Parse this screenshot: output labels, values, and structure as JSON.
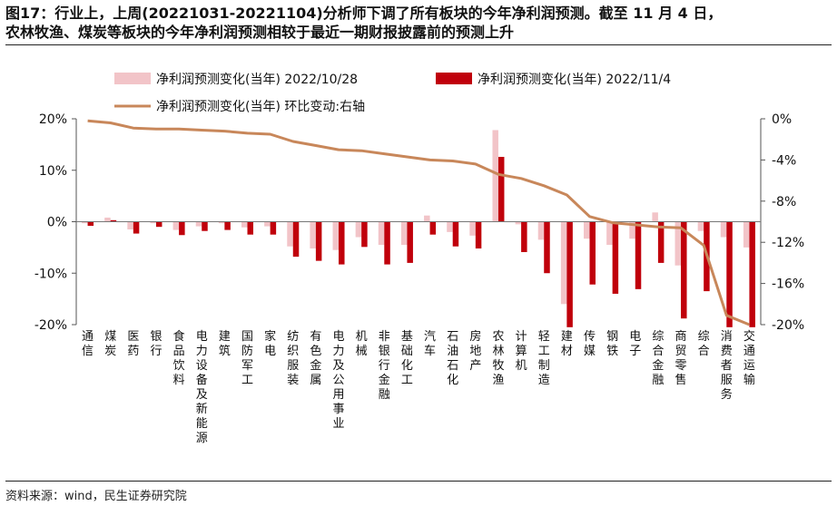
{
  "title_line1": "图17：行业上，上周(20221031-20221104)分析师下调了所有板块的今年净利润预测。截至 11 月 4 日，",
  "title_line2": "农林牧渔、煤炭等板块的今年净利润预测相较于最近一期财报披露前的预测上升",
  "source": "资料来源：wind，民生证券研究院",
  "colors": {
    "series_light": "#f2c4c8",
    "series_dark": "#c0000b",
    "series_line": "#c8875a"
  },
  "chart_data": {
    "type": "bar",
    "categories": [
      "通信",
      "煤炭",
      "医药",
      "银行",
      "食品饮料",
      "电力设备及新能源",
      "建筑",
      "国防军工",
      "家电",
      "纺织服装",
      "有色金属",
      "电力及公用事业",
      "机械",
      "非银行金融",
      "基础化工",
      "汽车",
      "石油石化",
      "房地产",
      "农林牧渔",
      "计算机",
      "轻工制造",
      "建材",
      "传媒",
      "钢铁",
      "电子",
      "综合金融",
      "商贸零售",
      "综合",
      "消费者服务",
      "交通运输"
    ],
    "series": [
      {
        "name": "净利润预测变化(当年) 2022/10/28",
        "kind": "bar",
        "axis": "left",
        "values": [
          -0.3,
          0.8,
          -1.5,
          -0.3,
          -1.6,
          -0.9,
          -0.3,
          -1.1,
          -0.9,
          -4.8,
          -5.2,
          -5.5,
          -3.0,
          -4.5,
          -4.5,
          1.2,
          -2.0,
          -2.7,
          17.8,
          -0.5,
          -3.5,
          -16.0,
          -3.3,
          -4.5,
          -3.3,
          1.8,
          -8.5,
          -1.8,
          -3.0,
          -5.0
        ]
      },
      {
        "name": "净利润预测变化(当年) 2022/11/4",
        "kind": "bar",
        "axis": "left",
        "values": [
          -0.8,
          0.3,
          -2.3,
          -1.0,
          -2.6,
          -1.8,
          -1.6,
          -2.5,
          -2.5,
          -6.8,
          -7.6,
          -8.3,
          -4.9,
          -8.3,
          -8.0,
          -2.5,
          -4.8,
          -5.2,
          12.6,
          -5.9,
          -10.0,
          -20.5,
          -12.2,
          -14.0,
          -13.1,
          -8.0,
          -18.8,
          -13.5,
          -20.5,
          -20.5
        ]
      },
      {
        "name": "净利润预测变化(当年) 环比变动:右轴",
        "kind": "line",
        "axis": "right",
        "values": [
          -0.2,
          -0.4,
          -0.9,
          -1.0,
          -1.0,
          -1.1,
          -1.2,
          -1.4,
          -1.5,
          -2.2,
          -2.6,
          -3.0,
          -3.1,
          -3.4,
          -3.7,
          -4.0,
          -4.1,
          -4.4,
          -5.4,
          -5.8,
          -6.5,
          -7.4,
          -9.5,
          -10.1,
          -10.3,
          -10.5,
          -10.6,
          -12.3,
          -19.1,
          -20.0
        ]
      }
    ],
    "left_axis": {
      "ylim": [
        -20,
        20
      ],
      "ticks": [
        "20%",
        "10%",
        "0%",
        "-10%",
        "-20%"
      ],
      "tick_values": [
        20,
        10,
        0,
        -10,
        -20
      ]
    },
    "right_axis": {
      "ylim": [
        -20,
        0
      ],
      "ticks": [
        "0%",
        "-4%",
        "-8%",
        "-12%",
        "-16%",
        "-20%"
      ],
      "tick_values": [
        0,
        -4,
        -8,
        -12,
        -16,
        -20
      ]
    },
    "legend": {
      "position": "top",
      "items": [
        "净利润预测变化(当年) 2022/10/28",
        "净利润预测变化(当年) 2022/11/4",
        "净利润预测变化(当年) 环比变动:右轴"
      ]
    },
    "grid": false
  }
}
